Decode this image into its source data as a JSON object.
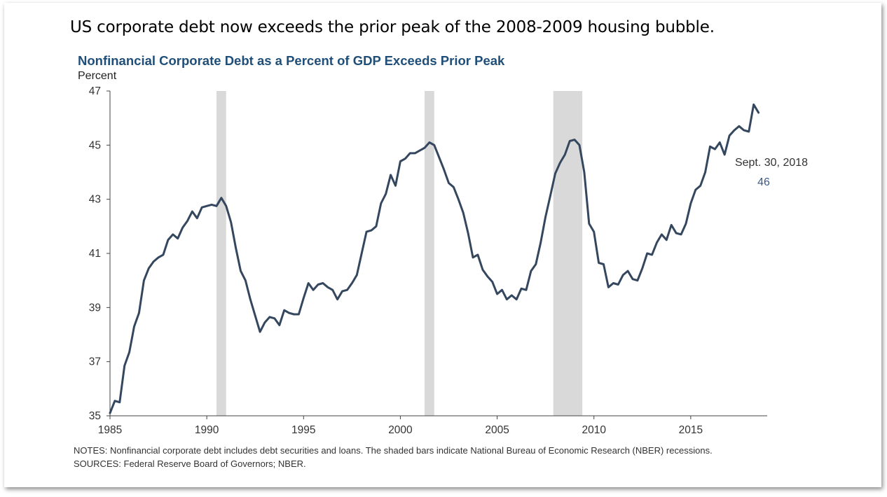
{
  "headline": "US corporate debt now exceeds the prior peak of the 2008-2009 housing bubble.",
  "chart_data": {
    "type": "line",
    "title": "Nonfinancial Corporate Debt as a Percent of GDP Exceeds Prior Peak",
    "ylabel": "Percent",
    "xlabel": "",
    "xlim": [
      1985,
      2019
    ],
    "ylim": [
      35,
      47
    ],
    "x_ticks": [
      "1985",
      "1990",
      "1995",
      "2000",
      "2005",
      "2010",
      "2015"
    ],
    "y_ticks": [
      "35",
      "37",
      "39",
      "41",
      "43",
      "45",
      "47"
    ],
    "grid": false,
    "series_color": "#34475e",
    "recession_color": "#d9d9d9",
    "recessions": [
      [
        1990.5,
        1991.0
      ],
      [
        2001.25,
        2001.75
      ],
      [
        2007.9,
        2009.4
      ]
    ],
    "annotation": {
      "date": "Sept. 30, 2018",
      "value": "46"
    },
    "series": [
      {
        "values": [
          [
            1985.0,
            35.1
          ],
          [
            1985.25,
            35.55
          ],
          [
            1985.5,
            35.5
          ],
          [
            1985.75,
            36.85
          ],
          [
            1986.0,
            37.35
          ],
          [
            1986.25,
            38.3
          ],
          [
            1986.5,
            38.8
          ],
          [
            1986.75,
            40.0
          ],
          [
            1987.0,
            40.45
          ],
          [
            1987.25,
            40.7
          ],
          [
            1987.5,
            40.85
          ],
          [
            1987.75,
            40.95
          ],
          [
            1988.0,
            41.5
          ],
          [
            1988.25,
            41.7
          ],
          [
            1988.5,
            41.55
          ],
          [
            1988.75,
            41.95
          ],
          [
            1989.0,
            42.2
          ],
          [
            1989.25,
            42.55
          ],
          [
            1989.5,
            42.3
          ],
          [
            1989.75,
            42.7
          ],
          [
            1990.0,
            42.75
          ],
          [
            1990.25,
            42.8
          ],
          [
            1990.5,
            42.75
          ],
          [
            1990.75,
            43.05
          ],
          [
            1991.0,
            42.75
          ],
          [
            1991.25,
            42.15
          ],
          [
            1991.5,
            41.2
          ],
          [
            1991.75,
            40.35
          ],
          [
            1992.0,
            40.0
          ],
          [
            1992.25,
            39.3
          ],
          [
            1992.5,
            38.7
          ],
          [
            1992.75,
            38.1
          ],
          [
            1993.0,
            38.45
          ],
          [
            1993.25,
            38.65
          ],
          [
            1993.5,
            38.6
          ],
          [
            1993.75,
            38.35
          ],
          [
            1994.0,
            38.9
          ],
          [
            1994.25,
            38.8
          ],
          [
            1994.5,
            38.75
          ],
          [
            1994.75,
            38.75
          ],
          [
            1995.0,
            39.35
          ],
          [
            1995.25,
            39.9
          ],
          [
            1995.5,
            39.65
          ],
          [
            1995.75,
            39.85
          ],
          [
            1996.0,
            39.9
          ],
          [
            1996.25,
            39.75
          ],
          [
            1996.5,
            39.65
          ],
          [
            1996.75,
            39.3
          ],
          [
            1997.0,
            39.6
          ],
          [
            1997.25,
            39.65
          ],
          [
            1997.5,
            39.9
          ],
          [
            1997.75,
            40.2
          ],
          [
            1998.0,
            41.0
          ],
          [
            1998.25,
            41.8
          ],
          [
            1998.5,
            41.85
          ],
          [
            1998.75,
            42.0
          ],
          [
            1999.0,
            42.85
          ],
          [
            1999.25,
            43.2
          ],
          [
            1999.5,
            43.9
          ],
          [
            1999.75,
            43.5
          ],
          [
            2000.0,
            44.4
          ],
          [
            2000.25,
            44.5
          ],
          [
            2000.5,
            44.7
          ],
          [
            2000.75,
            44.7
          ],
          [
            2001.0,
            44.8
          ],
          [
            2001.25,
            44.9
          ],
          [
            2001.5,
            45.1
          ],
          [
            2001.75,
            45.0
          ],
          [
            2002.0,
            44.55
          ],
          [
            2002.25,
            44.1
          ],
          [
            2002.5,
            43.6
          ],
          [
            2002.75,
            43.45
          ],
          [
            2003.0,
            43.0
          ],
          [
            2003.25,
            42.5
          ],
          [
            2003.5,
            41.75
          ],
          [
            2003.75,
            40.85
          ],
          [
            2004.0,
            40.95
          ],
          [
            2004.25,
            40.4
          ],
          [
            2004.5,
            40.15
          ],
          [
            2004.75,
            39.95
          ],
          [
            2005.0,
            39.5
          ],
          [
            2005.25,
            39.65
          ],
          [
            2005.5,
            39.3
          ],
          [
            2005.75,
            39.45
          ],
          [
            2006.0,
            39.3
          ],
          [
            2006.25,
            39.7
          ],
          [
            2006.5,
            39.65
          ],
          [
            2006.75,
            40.35
          ],
          [
            2007.0,
            40.6
          ],
          [
            2007.25,
            41.4
          ],
          [
            2007.5,
            42.35
          ],
          [
            2007.75,
            43.15
          ],
          [
            2008.0,
            43.95
          ],
          [
            2008.25,
            44.35
          ],
          [
            2008.5,
            44.65
          ],
          [
            2008.75,
            45.15
          ],
          [
            2009.0,
            45.2
          ],
          [
            2009.25,
            45.0
          ],
          [
            2009.5,
            44.0
          ],
          [
            2009.75,
            42.1
          ],
          [
            2010.0,
            41.8
          ],
          [
            2010.25,
            40.65
          ],
          [
            2010.5,
            40.6
          ],
          [
            2010.75,
            39.75
          ],
          [
            2011.0,
            39.9
          ],
          [
            2011.25,
            39.85
          ],
          [
            2011.5,
            40.2
          ],
          [
            2011.75,
            40.35
          ],
          [
            2012.0,
            40.05
          ],
          [
            2012.25,
            40.0
          ],
          [
            2012.5,
            40.45
          ],
          [
            2012.75,
            41.0
          ],
          [
            2013.0,
            40.95
          ],
          [
            2013.25,
            41.4
          ],
          [
            2013.5,
            41.7
          ],
          [
            2013.75,
            41.5
          ],
          [
            2014.0,
            42.05
          ],
          [
            2014.25,
            41.75
          ],
          [
            2014.5,
            41.7
          ],
          [
            2014.75,
            42.1
          ],
          [
            2015.0,
            42.85
          ],
          [
            2015.25,
            43.35
          ],
          [
            2015.5,
            43.5
          ],
          [
            2015.75,
            44.0
          ],
          [
            2016.0,
            44.95
          ],
          [
            2016.25,
            44.85
          ],
          [
            2016.5,
            45.1
          ],
          [
            2016.75,
            44.65
          ],
          [
            2017.0,
            45.35
          ],
          [
            2017.25,
            45.55
          ],
          [
            2017.5,
            45.7
          ],
          [
            2017.75,
            45.55
          ],
          [
            2018.0,
            45.5
          ],
          [
            2018.25,
            46.5
          ],
          [
            2018.5,
            46.2
          ]
        ]
      }
    ]
  },
  "notes": {
    "line1": "NOTES: Nonfinancial corporate debt includes debt securities and loans. The shaded bars indicate National Bureau of Economic Research (NBER) recessions.",
    "line2": "SOURCES: Federal Reserve Board of Governors; NBER."
  }
}
